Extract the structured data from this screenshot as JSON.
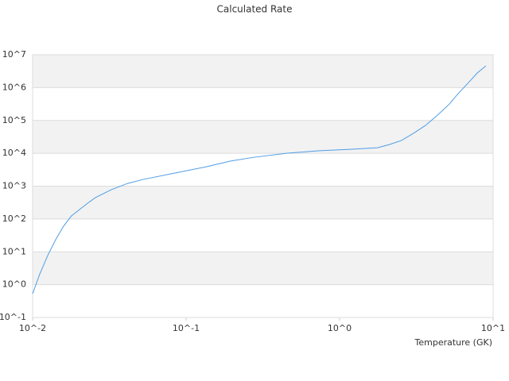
{
  "chart_data": {
    "type": "line",
    "title": "Calculated Rate",
    "x_label": "Temperature (GK)",
    "x": [
      0.01,
      0.01113,
      0.01254,
      0.0141,
      0.0159,
      0.0179,
      0.0228,
      0.0257,
      0.0326,
      0.0414,
      0.0525,
      0.0846,
      0.136,
      0.195,
      0.279,
      0.45,
      0.724,
      1.17,
      1.77,
      2.12,
      2.53,
      3.03,
      3.63,
      4.34,
      5.19,
      5.85,
      7.0,
      7.88,
      8.97
    ],
    "values": [
      0.53,
      2.1,
      7.7,
      23,
      60,
      124,
      300,
      450,
      780,
      1200,
      1600,
      2500,
      3900,
      5800,
      7600,
      10000,
      11900,
      13200,
      14800,
      18600,
      24600,
      40700,
      70800,
      145000,
      316000,
      617000,
      1510000,
      2780000,
      4600000
    ],
    "color": "#4e9de6",
    "xlog": true,
    "ylog": true,
    "xlim": [
      0.01,
      10
    ],
    "ylim": [
      0.1,
      10000000
    ],
    "xticks": [
      {
        "value": 0.01,
        "label": "10^-2"
      },
      {
        "value": 0.1,
        "label": "10^-1"
      },
      {
        "value": 1,
        "label": "10^0"
      },
      {
        "value": 10,
        "label": "10^1"
      }
    ],
    "yticks": [
      {
        "value": 0.1,
        "label": "10^-1"
      },
      {
        "value": 1,
        "label": "10^0"
      },
      {
        "value": 10,
        "label": "10^1"
      },
      {
        "value": 100,
        "label": "10^2"
      },
      {
        "value": 1000,
        "label": "10^3"
      },
      {
        "value": 10000,
        "label": "10^4"
      },
      {
        "value": 100000,
        "label": "10^5"
      },
      {
        "value": 1000000,
        "label": "10^6"
      },
      {
        "value": 10000000,
        "label": "10^7"
      }
    ],
    "grid": true,
    "band_color": "#f2f2f2"
  }
}
